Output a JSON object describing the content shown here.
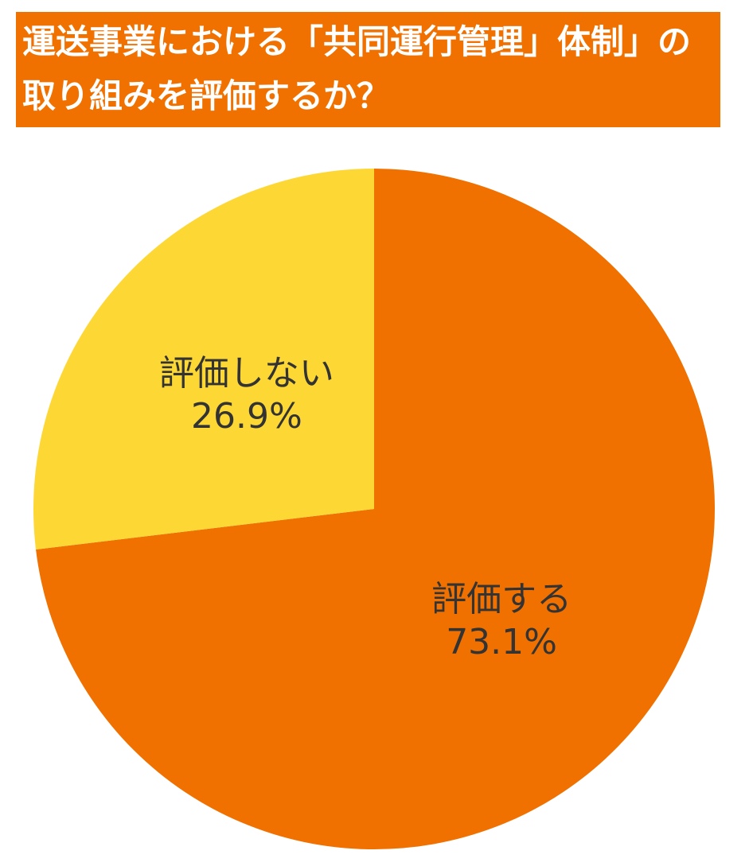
{
  "chart_data": {
    "type": "pie",
    "title": "運送事業における「共同運行管理」体制」の取り組みを評価するか？",
    "categories": [
      "評価する",
      "評価しない"
    ],
    "values": [
      73.1,
      26.9
    ],
    "value_labels": [
      "73.1%",
      "26.9%"
    ],
    "colors": [
      "#F07000",
      "#FDD835"
    ]
  }
}
